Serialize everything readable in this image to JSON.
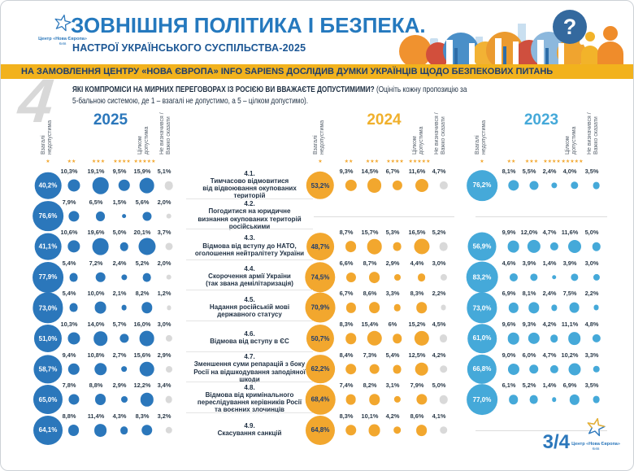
{
  "header": {
    "title": "ЗОВНІШНЯ ПОЛІТИКА І БЕЗПЕКА.",
    "subtitle": "НАСТРОЇ УКРАЇНСЬКОГО СУСПІЛЬСТВА-2025",
    "logo_text": "Центр «Нова Європа»",
    "logo_sub": "Київ"
  },
  "banner": {
    "text": "НА ЗАМОВЛЕННЯ ЦЕНТРУ «НОВА ЄВРОПА» INFO SAPIENS ДОСЛІДИВ ДУМКИ УКРАЇНЦІВ ЩОДО БЕЗПЕКОВИХ ПИТАНЬ"
  },
  "question": {
    "watermark": "4",
    "bold": "ЯКІ КОМПРОМІСИ НА МИРНИХ ПЕРЕГОВОРАХ ІЗ РОСІЄЮ ВИ ВВАЖАЄТЕ ДОПУСТИМИМИ?",
    "note_line1": "(Оцініть кожну пропозицію за",
    "note_line2": "5-бальною системою, де 1 – взагалі не допустимо, а 5 – цілком допустимо)."
  },
  "scale": {
    "left_label": "Взагалі\nнедопустима",
    "right_label": "Цілком\nдопустима",
    "na_label": "Не визначився /\nВажко сказати"
  },
  "chart_data": {
    "type": "bubble-matrix",
    "columns": [
      "Взагалі недопустима (1)",
      "2",
      "3",
      "4",
      "Цілком допустима (5)",
      "Не визначився / Важко сказати"
    ],
    "questions": [
      {
        "num": "4.1.",
        "text": "Тимчасово відмовитися\nвід відвоювання окупованих\nтериторій"
      },
      {
        "num": "4.2.",
        "text": "Погодитися на юридичне\nвизнання окупованих територій\nросійськими"
      },
      {
        "num": "4.3.",
        "text": "Відмова від вступу до НАТО,\nоголошення нейтралітету України"
      },
      {
        "num": "4.4.",
        "text": "Скорочення армії України\n(так звана демілітаризація)"
      },
      {
        "num": "4.5.",
        "text": "Надання російській мові\nдержавного статусу"
      },
      {
        "num": "4.6.",
        "text": "Відмова від вступу в ЄС"
      },
      {
        "num": "4.7.",
        "text": "Зменшення суми репарацій з боку\nРосії на відшкодування заподіяної\nшкоди"
      },
      {
        "num": "4.8.",
        "text": "Відмова від кримінального\nпереслідування керівників Росії\nта воєнних злочинців"
      },
      {
        "num": "4.9.",
        "text": "Скасування санкцій"
      }
    ],
    "years": [
      {
        "year": "2025",
        "color": "#2b77bb",
        "title_color": "#2b77bb",
        "big_text": "#ffffff",
        "na_color": "#d9d9d9",
        "rows": [
          [
            "40,2%",
            "10,3%",
            "19,1%",
            "9,5%",
            "15,9%",
            "5,1%"
          ],
          [
            "76,6%",
            "7,9%",
            "6,5%",
            "1,5%",
            "5,6%",
            "2,0%"
          ],
          [
            "41,1%",
            "10,6%",
            "19,6%",
            "5,0%",
            "20,1%",
            "3,7%"
          ],
          [
            "77,9%",
            "5,4%",
            "7,2%",
            "2,4%",
            "5,2%",
            "2,0%"
          ],
          [
            "73,0%",
            "5,4%",
            "10,0%",
            "2,1%",
            "8,2%",
            "1,2%"
          ],
          [
            "51,0%",
            "10,3%",
            "14,0%",
            "5,7%",
            "16,0%",
            "3,0%"
          ],
          [
            "58,7%",
            "9,4%",
            "10,8%",
            "2,7%",
            "15,6%",
            "2,9%"
          ],
          [
            "65,0%",
            "7,8%",
            "8,8%",
            "2,9%",
            "12,2%",
            "3,4%"
          ],
          [
            "64,1%",
            "8,8%",
            "11,4%",
            "4,3%",
            "8,3%",
            "3,2%"
          ]
        ]
      },
      {
        "year": "2024",
        "color": "#f2a72e",
        "title_color": "#f0b02c",
        "big_text": "#1d3c6e",
        "na_color": "#d9d9d9",
        "rows": [
          [
            "53,2%",
            "9,3%",
            "14,5%",
            "6,7%",
            "11,6%",
            "4,7%"
          ],
          null,
          [
            "48,7%",
            "8,7%",
            "15,7%",
            "5,3%",
            "16,5%",
            "5,2%"
          ],
          [
            "74,5%",
            "6,6%",
            "8,7%",
            "2,9%",
            "4,4%",
            "3,0%"
          ],
          [
            "70,9%",
            "6,7%",
            "8,6%",
            "3,3%",
            "8,3%",
            "2,2%"
          ],
          [
            "50,7%",
            "8,3%",
            "15,4%",
            "6%",
            "15,2%",
            "4,5%"
          ],
          [
            "62,2%",
            "8,4%",
            "7,3%",
            "5,4%",
            "12,5%",
            "4,2%"
          ],
          [
            "68,4%",
            "7,4%",
            "8,2%",
            "3,1%",
            "7,9%",
            "5,0%"
          ],
          [
            "64,8%",
            "8,3%",
            "10,1%",
            "4,2%",
            "8,6%",
            "4,1%"
          ]
        ]
      },
      {
        "year": "2023",
        "color": "#45a9d9",
        "title_color": "#45a9d9",
        "big_text": "#ffffff",
        "na_color": "#45a9d9",
        "rows": [
          [
            "76,2%",
            "8,1%",
            "5,5%",
            "2,4%",
            "4,0%",
            "3,5%"
          ],
          null,
          [
            "56,9%",
            "9,9%",
            "12,0%",
            "4,7%",
            "11,6%",
            "5,0%"
          ],
          [
            "83,2%",
            "4,6%",
            "3,9%",
            "1,4%",
            "3,9%",
            "3,0%"
          ],
          [
            "73,0%",
            "6,9%",
            "8,1%",
            "2,4%",
            "7,5%",
            "2,2%"
          ],
          [
            "61,0%",
            "9,6%",
            "9,3%",
            "4,2%",
            "11,1%",
            "4,8%"
          ],
          [
            "66,8%",
            "9,0%",
            "6,0%",
            "4,7%",
            "10,2%",
            "3,3%"
          ],
          [
            "77,0%",
            "6,1%",
            "5,2%",
            "1,4%",
            "6,9%",
            "3,5%"
          ],
          null
        ]
      }
    ]
  },
  "footer": {
    "page": "3/4",
    "logo_text": "Центр «Нова Європа»",
    "logo_sub": "Київ"
  }
}
